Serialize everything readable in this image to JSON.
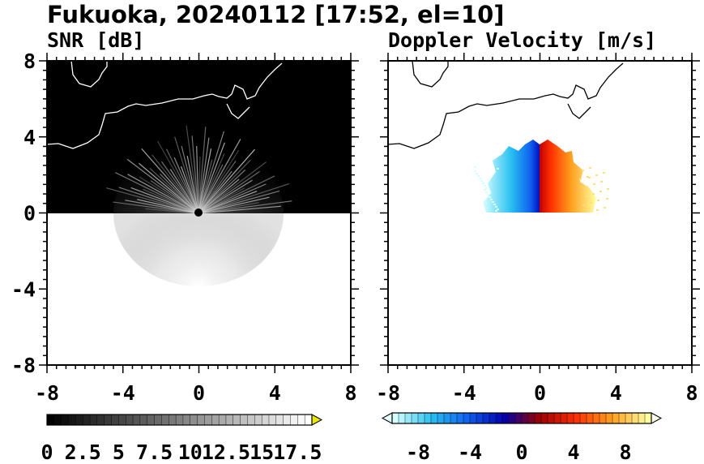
{
  "title": "Fukuoka, 20240112 [17:52, el=10]",
  "chart_data": [
    {
      "type": "heatmap",
      "title": "SNR [dB]",
      "xlim": [
        -8,
        8
      ],
      "ylim": [
        -8,
        8
      ],
      "xticks": [
        "-8",
        "-4",
        "0",
        "4",
        "8"
      ],
      "yticks": [
        "8",
        "4",
        "0",
        "-4",
        "-8"
      ],
      "data_extent": {
        "x": [
          -8,
          8
        ],
        "y": [
          0,
          8
        ]
      },
      "background_color": "#000000",
      "colorbar": {
        "min": 0,
        "max": 18.5,
        "steps": 37,
        "colors": [
          "#000000",
          "#ffffff"
        ],
        "extend": "max",
        "extend_color": "#e8e800",
        "tick_labels": [
          "0",
          "2.5",
          "5",
          "7.5",
          "10",
          "12.5",
          "15",
          "17.5"
        ],
        "tick_values": [
          0,
          2.5,
          5,
          7.5,
          10,
          12.5,
          15,
          17.5
        ]
      },
      "coastline_color": "#ffffff"
    },
    {
      "type": "heatmap",
      "title": "Doppler Velocity [m/s]",
      "xlim": [
        -8,
        8
      ],
      "ylim": [
        -8,
        8
      ],
      "xticks": [
        "-8",
        "-4",
        "0",
        "4",
        "8"
      ],
      "yticks": [
        "8",
        "4",
        "0",
        "-4",
        "-8"
      ],
      "colorbar": {
        "min": -10,
        "max": 10,
        "steps": 40,
        "colors": [
          "#d8ffff",
          "#28c0f0",
          "#1060f0",
          "#0000b0",
          "#a00000",
          "#ff3000",
          "#ffa020",
          "#ffffa0"
        ],
        "extend": "both",
        "extend_colors": [
          "#e8ffff",
          "#fffff0"
        ],
        "tick_labels": [
          "-8",
          "-4",
          "0",
          "4",
          "8"
        ],
        "tick_values": [
          -8,
          -4,
          0,
          4,
          8
        ]
      },
      "coastline_color": "#000000"
    }
  ]
}
